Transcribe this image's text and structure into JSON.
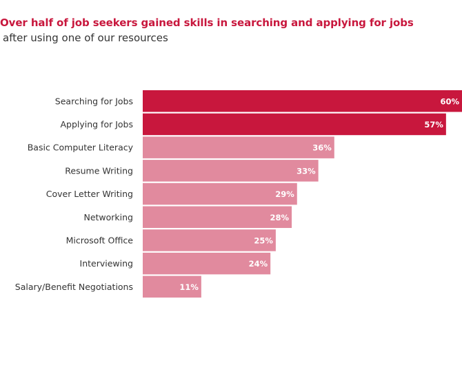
{
  "chart_data": {
    "type": "bar",
    "orientation": "horizontal",
    "title": "Over half of job seekers gained skills in searching and applying for jobs",
    "subtitle": "after using one of our resources",
    "categories": [
      "Searching for Jobs",
      "Applying for Jobs",
      "Basic Computer Literacy",
      "Resume Writing",
      "Cover Letter Writing",
      "Networking",
      "Microsoft Office",
      "Interviewing",
      "Salary/Benefit Negotiations"
    ],
    "values": [
      60,
      57,
      36,
      33,
      29,
      28,
      25,
      24,
      11
    ],
    "value_labels": [
      "60%",
      "57%",
      "36%",
      "33%",
      "29%",
      "28%",
      "25%",
      "24%",
      "11%"
    ],
    "highlight": [
      true,
      true,
      false,
      false,
      false,
      false,
      false,
      false,
      false
    ],
    "xlim": [
      0,
      60
    ],
    "grid": false,
    "colors": {
      "title": "#c8173d",
      "highlight": "#c8173d",
      "normal": "#e18a9e",
      "label": "#333333",
      "value_text": "#ffffff"
    }
  }
}
